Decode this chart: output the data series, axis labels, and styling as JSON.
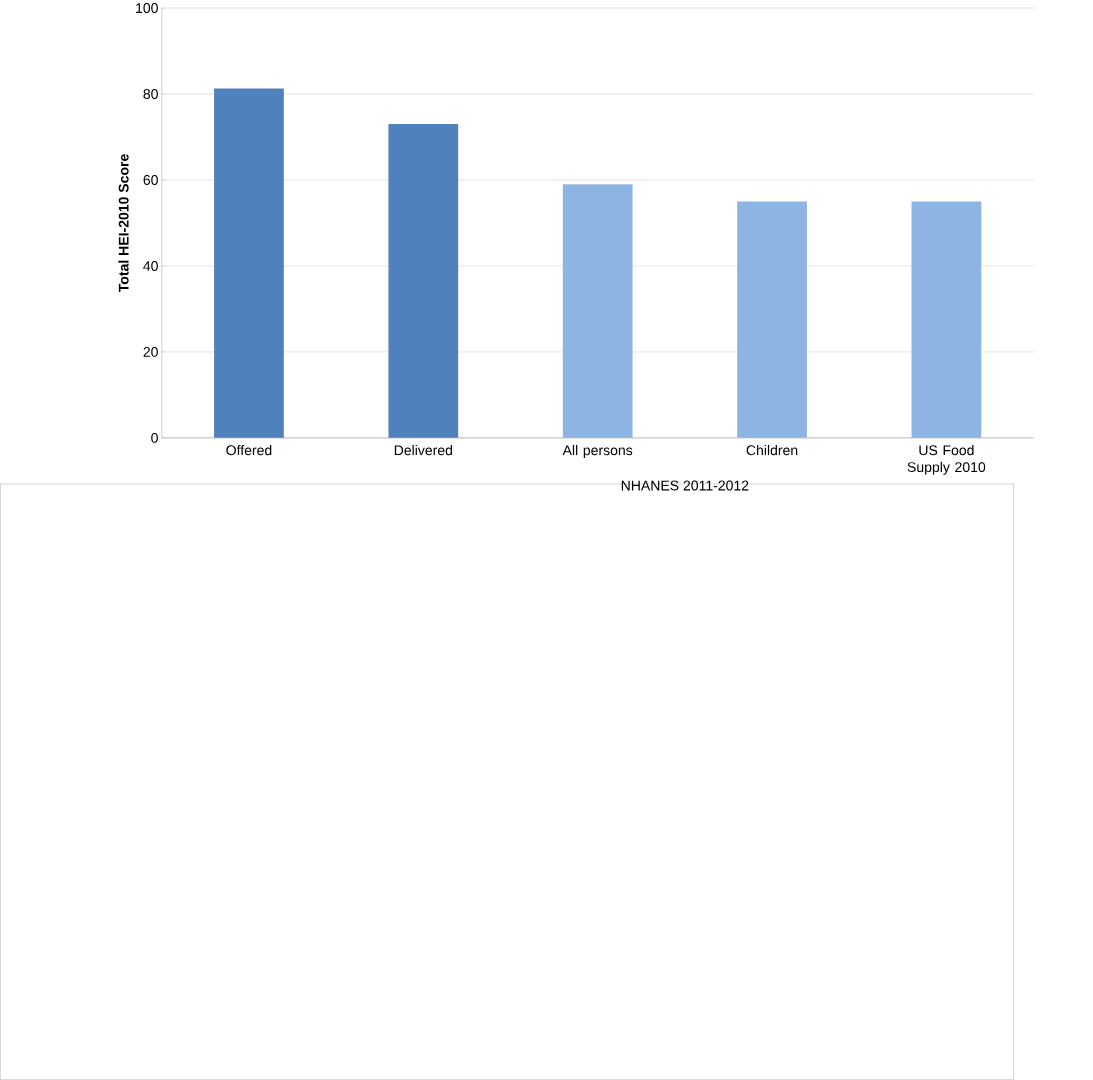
{
  "chart_data": {
    "type": "bar",
    "ylabel": "Total HEI-2010 Score",
    "categories": [
      "Offered",
      "Delivered",
      "All persons",
      "Children",
      "US Food Supply 2010"
    ],
    "values": [
      81.3,
      73,
      59,
      55,
      55
    ],
    "colors": [
      "#4f81bd",
      "#4f81bd",
      "#8eb4e3",
      "#8eb4e3",
      "#8eb4e3"
    ],
    "ylim": [
      0,
      100
    ],
    "yticks": [
      0,
      20,
      40,
      60,
      80,
      100
    ],
    "grid": "y",
    "annotations": [
      "NHANES 2011-2012"
    ]
  }
}
